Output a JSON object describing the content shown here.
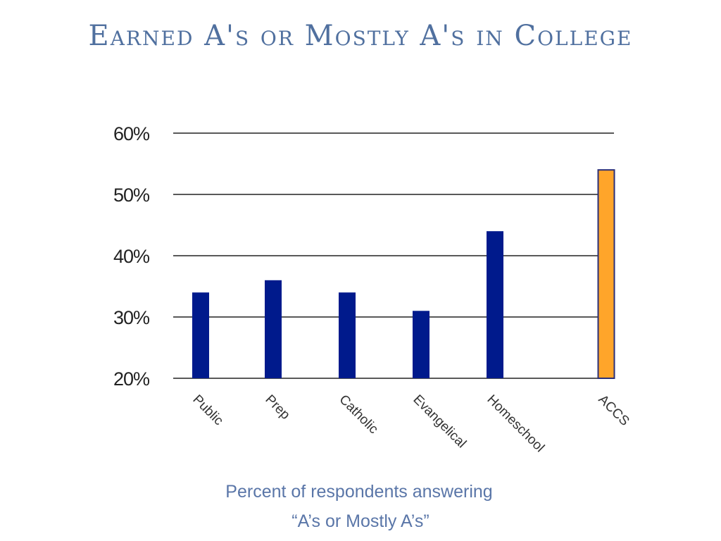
{
  "chart_data": {
    "type": "bar",
    "title": "Earned A's or Mostly A's in College",
    "subtitle": [
      "Percent of respondents answering",
      "“A’s or Mostly A’s”"
    ],
    "categories": [
      "Public",
      "Prep",
      "Catholic",
      "Evangelical",
      "Homeschool",
      "ACCS"
    ],
    "values": [
      34,
      36,
      34,
      31,
      44,
      54
    ],
    "unit": "%",
    "ylim": [
      20,
      60
    ],
    "yticks": [
      20,
      30,
      40,
      50,
      60
    ],
    "ytick_labels": [
      "20%",
      "30%",
      "40%",
      "50%",
      "60%"
    ],
    "grid": true,
    "colors": {
      "default": "#001a8c",
      "highlight": "#ffa52a",
      "highlight_border": "#2a2f78",
      "grid": "#222222"
    },
    "highlighted_category": "ACCS"
  }
}
